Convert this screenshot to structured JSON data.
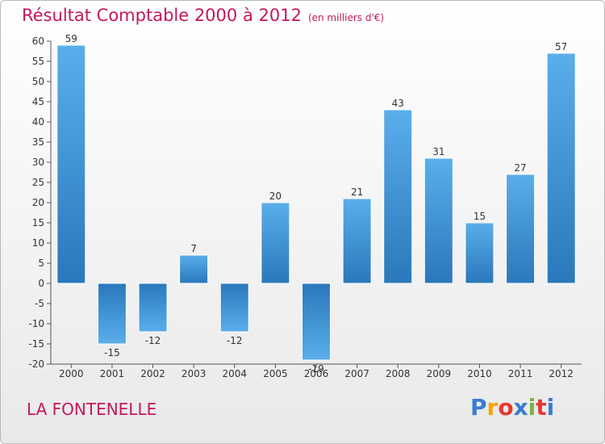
{
  "header": {
    "title": "Résultat Comptable 2000 à 2012",
    "subtitle": "(en milliers d'€)"
  },
  "footer": {
    "place": "LA FONTENELLE",
    "logo_letters": [
      "P",
      "r",
      "o",
      "x",
      "i",
      "t",
      "i"
    ],
    "logo_colors": [
      "#3a7bd5",
      "#f7a400",
      "#e53935",
      "#3a7bd5",
      "#7cb342",
      "#e53935",
      "#3a7bd5"
    ]
  },
  "chart_data": {
    "type": "bar",
    "title": "Résultat Comptable 2000 à 2012",
    "xlabel": "",
    "ylabel": "",
    "ylim": [
      -20,
      60
    ],
    "yticks": [
      60,
      55,
      50,
      45,
      40,
      35,
      30,
      25,
      20,
      15,
      10,
      5,
      0,
      -5,
      -10,
      -15,
      -20
    ],
    "grid": false,
    "categories": [
      "2000",
      "2001",
      "2002",
      "2003",
      "2004",
      "2005",
      "2006",
      "2007",
      "2008",
      "2009",
      "2010",
      "2011",
      "2012"
    ],
    "values": [
      59,
      -15,
      -12,
      7,
      -12,
      20,
      -19,
      21,
      43,
      31,
      15,
      27,
      57
    ],
    "value_labels": [
      "59",
      "-15",
      "-12",
      "7",
      "-12",
      "20",
      "-19",
      "21",
      "43",
      "31",
      "15",
      "27",
      "57"
    ],
    "bar_color": "#3a8fd8"
  }
}
